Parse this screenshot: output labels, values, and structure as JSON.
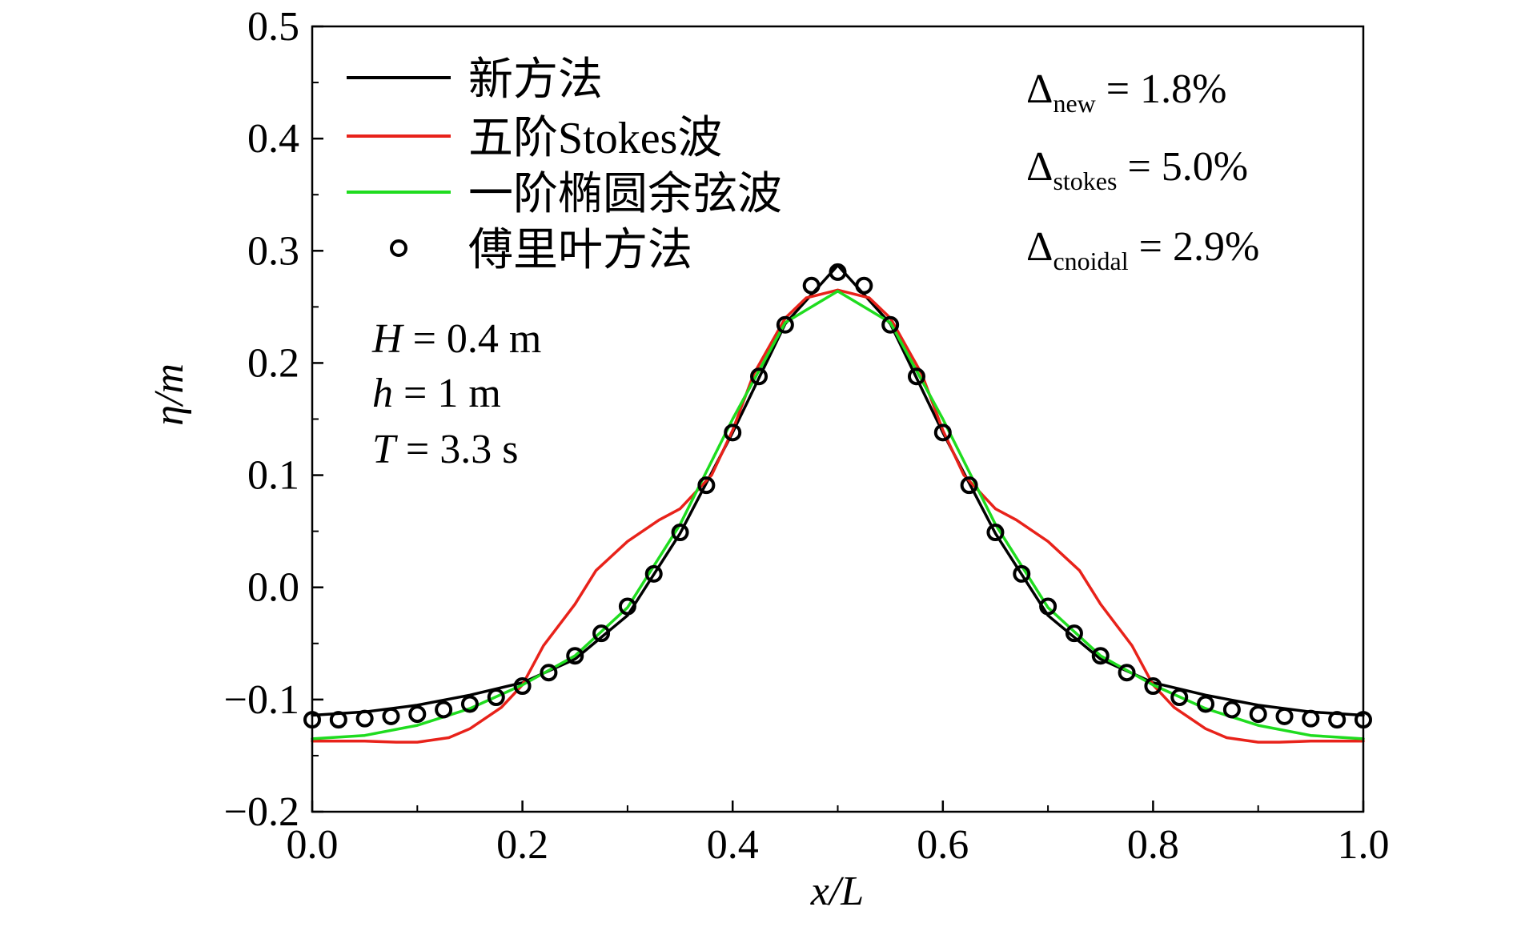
{
  "chart_data": {
    "type": "line",
    "xlabel": "x/L",
    "ylabel": "η/m",
    "xlim": [
      0.0,
      1.0
    ],
    "ylim": [
      -0.2,
      0.5
    ],
    "x_ticks": [
      "0.0",
      "0.2",
      "0.4",
      "0.6",
      "0.8",
      "1.0"
    ],
    "y_ticks": [
      "−0.2",
      "−0.1",
      "0.0",
      "0.1",
      "0.2",
      "0.3",
      "0.4",
      "0.5"
    ],
    "grid": false,
    "legend_position": "top-left",
    "series": [
      {
        "name": "新方法",
        "style": "line",
        "color": "#000000",
        "x": [
          0.0,
          0.05,
          0.1,
          0.15,
          0.2,
          0.25,
          0.3,
          0.35,
          0.4,
          0.45,
          0.5,
          0.55,
          0.6,
          0.65,
          0.7,
          0.75,
          0.8,
          0.85,
          0.9,
          0.95,
          1.0
        ],
        "y": [
          -0.114,
          -0.111,
          -0.105,
          -0.096,
          -0.085,
          -0.064,
          -0.025,
          0.048,
          0.138,
          0.235,
          0.287,
          0.235,
          0.138,
          0.048,
          -0.025,
          -0.064,
          -0.085,
          -0.096,
          -0.105,
          -0.111,
          -0.114
        ]
      },
      {
        "name": "五阶Stokes波",
        "style": "line",
        "color": "#e8221a",
        "x": [
          0.0,
          0.05,
          0.08,
          0.1,
          0.13,
          0.15,
          0.18,
          0.2,
          0.22,
          0.25,
          0.27,
          0.3,
          0.33,
          0.35,
          0.38,
          0.4,
          0.42,
          0.45,
          0.47,
          0.5,
          0.53,
          0.55,
          0.58,
          0.6,
          0.62,
          0.65,
          0.67,
          0.7,
          0.73,
          0.75,
          0.78,
          0.8,
          0.82,
          0.85,
          0.87,
          0.9,
          0.92,
          0.95,
          1.0
        ],
        "y": [
          -0.137,
          -0.137,
          -0.138,
          -0.138,
          -0.134,
          -0.126,
          -0.107,
          -0.087,
          -0.052,
          -0.015,
          0.015,
          0.041,
          0.06,
          0.07,
          0.1,
          0.14,
          0.19,
          0.24,
          0.258,
          0.265,
          0.258,
          0.24,
          0.19,
          0.14,
          0.1,
          0.07,
          0.06,
          0.041,
          0.015,
          -0.015,
          -0.052,
          -0.087,
          -0.107,
          -0.126,
          -0.134,
          -0.138,
          -0.138,
          -0.137,
          -0.137
        ]
      },
      {
        "name": "一阶椭圆余弦波",
        "style": "line",
        "color": "#1fdc1f",
        "x": [
          0.0,
          0.05,
          0.1,
          0.15,
          0.2,
          0.25,
          0.3,
          0.35,
          0.4,
          0.45,
          0.5,
          0.55,
          0.6,
          0.65,
          0.7,
          0.75,
          0.8,
          0.85,
          0.9,
          0.95,
          1.0
        ],
        "y": [
          -0.135,
          -0.132,
          -0.123,
          -0.108,
          -0.087,
          -0.061,
          -0.018,
          0.056,
          0.15,
          0.236,
          0.264,
          0.236,
          0.15,
          0.056,
          -0.018,
          -0.061,
          -0.087,
          -0.108,
          -0.123,
          -0.132,
          -0.135
        ]
      },
      {
        "name": "傅里叶方法",
        "style": "markers",
        "color": "#000000",
        "x": [
          0.0,
          0.025,
          0.05,
          0.075,
          0.1,
          0.125,
          0.15,
          0.175,
          0.2,
          0.225,
          0.25,
          0.275,
          0.3,
          0.325,
          0.35,
          0.375,
          0.4,
          0.425,
          0.45,
          0.475,
          0.5,
          0.525,
          0.55,
          0.575,
          0.6,
          0.625,
          0.65,
          0.675,
          0.7,
          0.725,
          0.75,
          0.775,
          0.8,
          0.825,
          0.85,
          0.875,
          0.9,
          0.925,
          0.95,
          0.975,
          1.0
        ],
        "y": [
          -0.118,
          -0.118,
          -0.117,
          -0.115,
          -0.113,
          -0.109,
          -0.104,
          -0.098,
          -0.088,
          -0.076,
          -0.061,
          -0.041,
          -0.017,
          0.012,
          0.049,
          0.091,
          0.138,
          0.188,
          0.234,
          0.269,
          0.281,
          0.269,
          0.234,
          0.188,
          0.138,
          0.091,
          0.049,
          0.012,
          -0.017,
          -0.041,
          -0.061,
          -0.076,
          -0.088,
          -0.098,
          -0.104,
          -0.109,
          -0.113,
          -0.115,
          -0.117,
          -0.118,
          -0.118
        ]
      }
    ],
    "annotations": {
      "params": [
        {
          "var": "H",
          "text": " = 0.4 m"
        },
        {
          "var": "h",
          "text": " = 1 m"
        },
        {
          "var": "T",
          "text": " = 3.3 s"
        }
      ],
      "deltas": [
        {
          "symbol": "Δ",
          "sub": "new",
          "text": " = 1.8%"
        },
        {
          "symbol": "Δ",
          "sub": "stokes",
          "text": " = 5.0%"
        },
        {
          "symbol": "Δ",
          "sub": "cnoidal",
          "text": " = 2.9%"
        }
      ]
    }
  }
}
